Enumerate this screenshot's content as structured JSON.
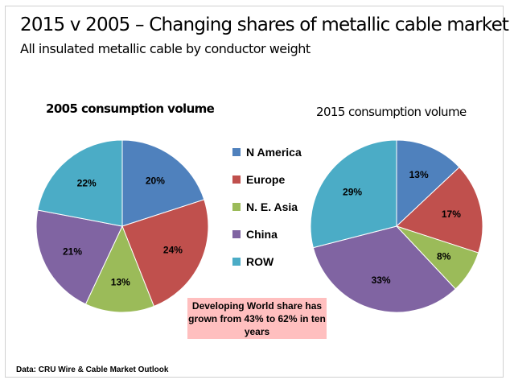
{
  "title": "2015 v 2005 – Changing shares of metallic cable market",
  "subtitle": "All insulated metallic cable by conductor weight",
  "note": "Developing World share has grown from 43% to 62% in ten years",
  "source": "Data: CRU Wire & Cable Market Outlook",
  "colors": {
    "N America": "#4F81BD",
    "Europe": "#C0504D",
    "N. E. Asia": "#9BBB59",
    "China": "#8064A2",
    "ROW": "#4BACC6"
  },
  "chart_data": [
    {
      "type": "pie",
      "title": "2005 consumption volume",
      "categories": [
        "N America",
        "Europe",
        "N. E. Asia",
        "China",
        "ROW"
      ],
      "values": [
        20,
        24,
        13,
        21,
        22
      ],
      "labels": [
        "20%",
        "24%",
        "13%",
        "21%",
        "22%"
      ],
      "legend": "shared-center"
    },
    {
      "type": "pie",
      "title": "2015 consumption volume",
      "categories": [
        "N America",
        "Europe",
        "N. E. Asia",
        "China",
        "ROW"
      ],
      "values": [
        13,
        17,
        8,
        33,
        29
      ],
      "labels": [
        "13%",
        "17%",
        "8%",
        "33%",
        "29%"
      ],
      "legend": "shared-center"
    }
  ]
}
